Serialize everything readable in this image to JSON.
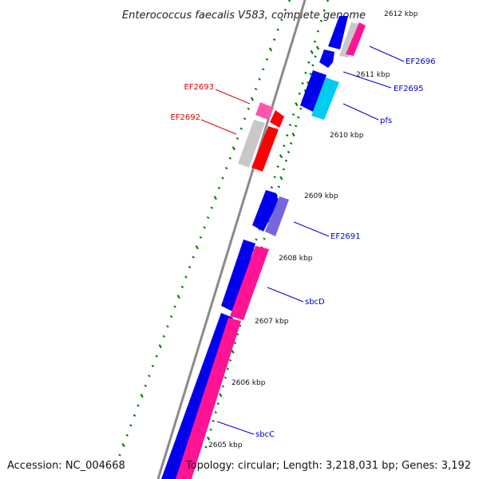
{
  "title": "Enterococcus faecalis V583, complete genome",
  "footer": {
    "accession": "Accession: NC_004668",
    "topology": "Topology: circular; Length: 3,218,031 bp; Genes: 3,192"
  },
  "colors": {
    "backbone": "#888888",
    "tick": "#008000",
    "forward_blue": "#0000ee",
    "reverse_pink": "#ff1493",
    "red": "#ff0000",
    "pink_light": "#ff55aa",
    "gray": "#c8c8c8",
    "cyan": "#00ccee",
    "purple": "#7766dd",
    "label_blue": "#0000cc",
    "label_red": "#dd0000"
  },
  "scale_labels": [
    "2612 kbp",
    "2611 kbp",
    "2610 kbp",
    "2609 kbp",
    "2608 kbp",
    "2607 kbp",
    "2606 kbp",
    "2605 kbp"
  ],
  "gene_labels": [
    {
      "text": "EF2696",
      "color": "blue"
    },
    {
      "text": "EF2695",
      "color": "blue"
    },
    {
      "text": "pfs",
      "color": "blue"
    },
    {
      "text": "EF2693",
      "color": "red"
    },
    {
      "text": "EF2692",
      "color": "red"
    },
    {
      "text": "EF2691",
      "color": "blue"
    },
    {
      "text": "sbcD",
      "color": "blue"
    },
    {
      "text": "sbcC",
      "color": "blue"
    }
  ]
}
